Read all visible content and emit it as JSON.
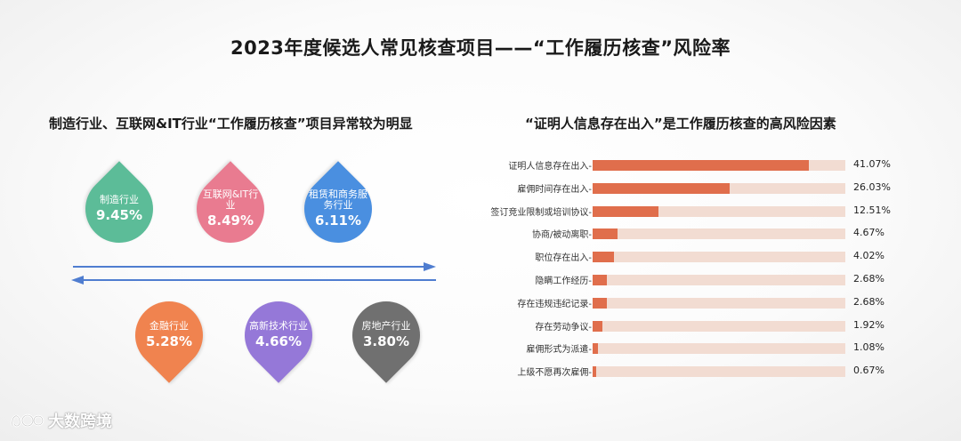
{
  "title": "2023年度候选人常见核查项目——“工作履历核查”风险率",
  "left_subtitle": "制造行业、互联网&IT行业“工作履历核查”项目异常较为明显",
  "right_subtitle": "“证明人信息存在出入”是工作履历核查的高风险因素",
  "industries": [
    {
      "label": "制造行业",
      "value": "9.45%",
      "color": "#5cbc98"
    },
    {
      "label": "互联网&IT行业",
      "value": "8.49%",
      "color": "#e97b90"
    },
    {
      "label": "租赁和商务服务行业",
      "value": "6.11%",
      "color": "#4a8fe0"
    },
    {
      "label": "金融行业",
      "value": "5.28%",
      "color": "#f0834f"
    },
    {
      "label": "高新技术行业",
      "value": "4.66%",
      "color": "#9578d8"
    },
    {
      "label": "房地产行业",
      "value": "3.80%",
      "color": "#707070"
    }
  ],
  "chart_data": {
    "type": "bar",
    "orientation": "horizontal",
    "categories": [
      "证明人信息存在出入",
      "雇佣时间存在出入",
      "签订竞业限制或培训协议",
      "协商/被动离职",
      "职位存在出入",
      "隐瞒工作经历",
      "存在违规违纪记录",
      "存在劳动争议",
      "雇佣形式为派遣",
      "上级不愿再次雇佣"
    ],
    "values": [
      41.07,
      26.03,
      12.51,
      4.67,
      4.02,
      2.68,
      2.68,
      1.92,
      1.08,
      0.67
    ],
    "value_labels": [
      "41.07%",
      "26.03%",
      "12.51%",
      "4.67%",
      "4.02%",
      "2.68%",
      "2.68%",
      "1.92%",
      "1.08%",
      "0.67%"
    ],
    "xlim": [
      0,
      48
    ],
    "bar_color": "#e06e4c",
    "track_color": "#f2dcd2",
    "grid": false
  },
  "logo": {
    "text": "大数跨境"
  }
}
